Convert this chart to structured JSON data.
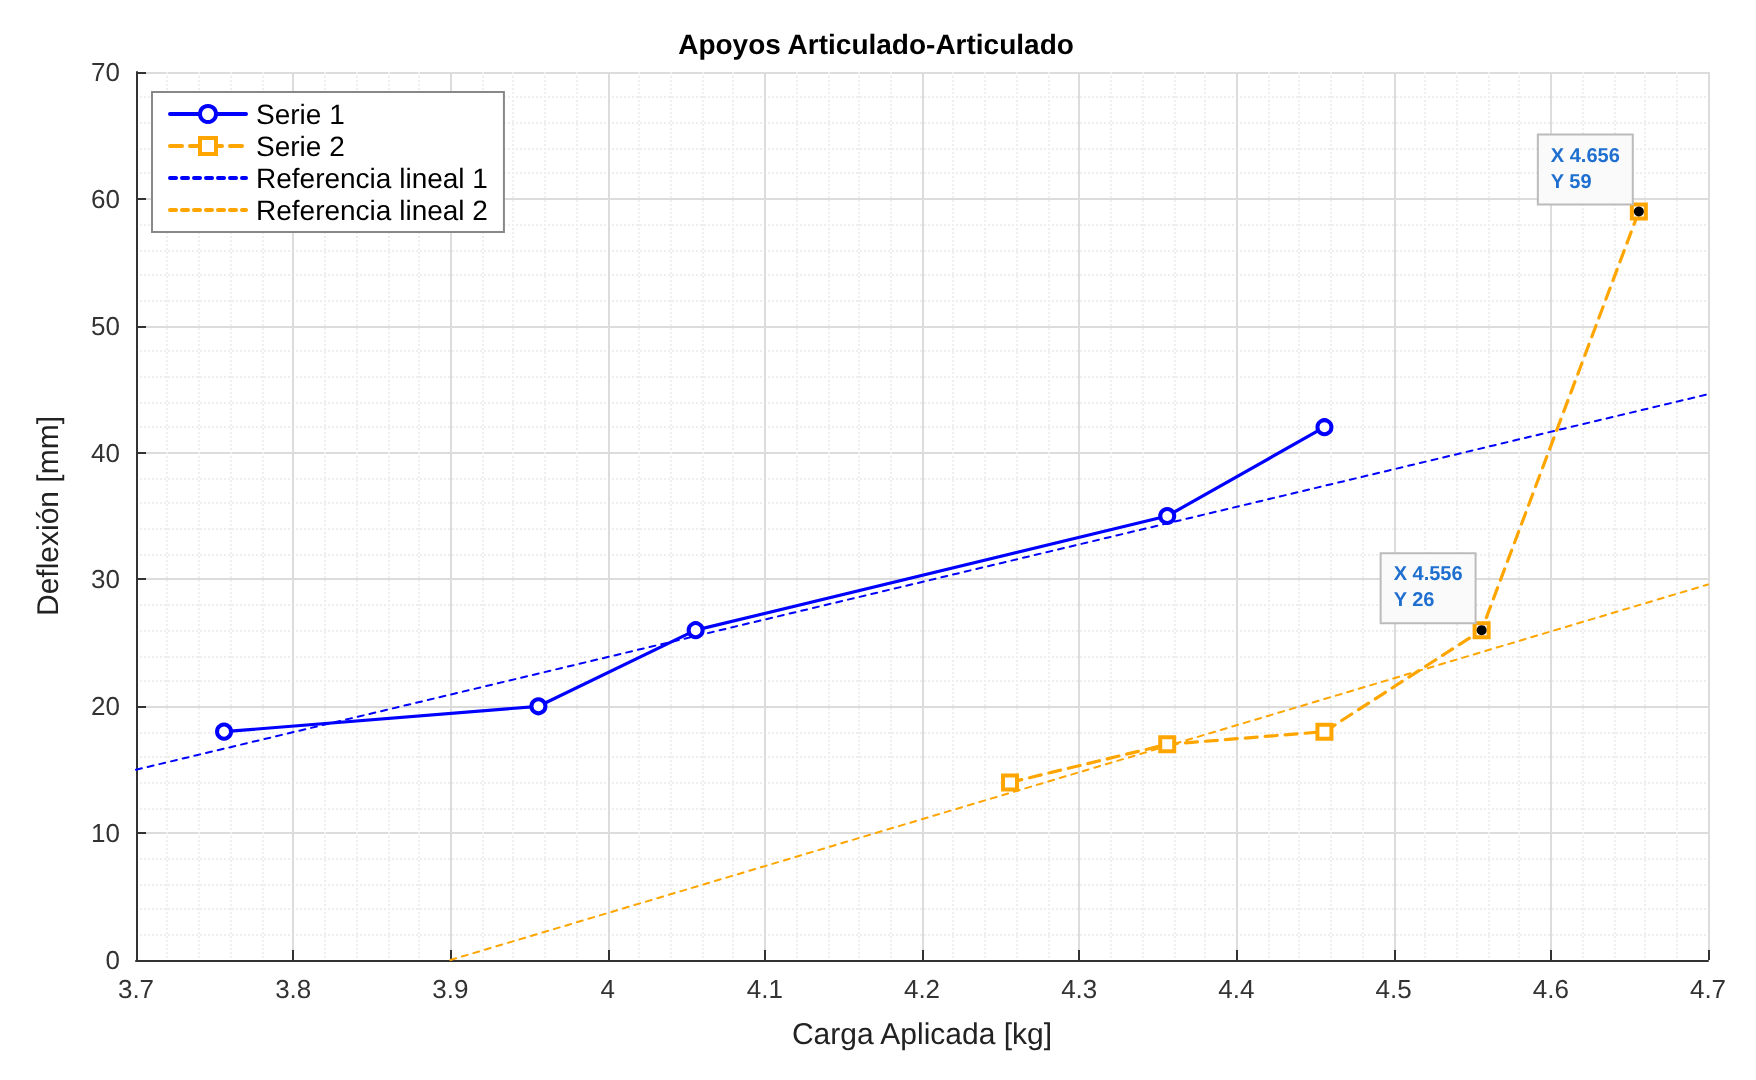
{
  "chart_data": {
    "type": "line",
    "title": "Apoyos Articulado-Articulado",
    "xlabel": "Carga Aplicada [kg]",
    "ylabel": "Deflexión [mm]",
    "xlim": [
      3.7,
      4.7
    ],
    "xticks": [
      3.7,
      3.8,
      3.9,
      4,
      4.1,
      4.2,
      4.3,
      4.4,
      4.5,
      4.6,
      4.7
    ],
    "ylim": [
      0,
      70
    ],
    "yticks": [
      0,
      10,
      20,
      30,
      40,
      50,
      60,
      70
    ],
    "grid": true,
    "legend": "top left",
    "series": [
      {
        "name": "Serie 1",
        "color": "#0000ff",
        "marker": "circle",
        "line_style": "solid",
        "x": [
          3.756,
          3.956,
          4.056,
          4.356,
          4.456
        ],
        "values": [
          18,
          20,
          26,
          35,
          42
        ]
      },
      {
        "name": "Serie 2",
        "color": "#ffa500",
        "marker": "square",
        "line_style": "dashed",
        "x": [
          4.256,
          4.356,
          4.456,
          4.556,
          4.656
        ],
        "values": [
          14,
          17,
          18,
          26,
          59
        ]
      },
      {
        "name": "Referencia lineal 1",
        "color": "#0000ff",
        "marker": "none",
        "line_style": "dotted",
        "x": [
          3.7,
          4.7
        ],
        "values": [
          15,
          44.6
        ]
      },
      {
        "name": "Referencia lineal 2",
        "color": "#ffa500",
        "marker": "none",
        "line_style": "dotted",
        "x": [
          3.9,
          4.7
        ],
        "values": [
          0,
          29.6
        ]
      }
    ],
    "annotations": [
      {
        "text": "X 4.656\nY 59",
        "x": 4.656,
        "y": 59
      },
      {
        "text": "X 4.556\nY 26",
        "x": 4.556,
        "y": 26
      }
    ]
  }
}
